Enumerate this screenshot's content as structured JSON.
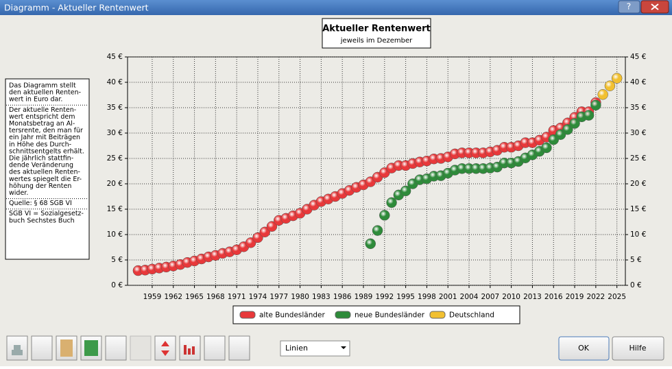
{
  "window": {
    "title": "Diagramm - Aktueller Rentenwert",
    "help_button": "?"
  },
  "notes": [
    [
      "Das Diagramm stellt",
      "den aktuellen Renten-",
      "wert in Euro dar."
    ],
    [
      "Der aktuelle Renten-",
      "wert entspricht dem",
      "Monatsbetrag an Al-",
      "tersrente, den man für",
      "ein Jahr mit Beiträgen",
      "in Höhe des Durch-",
      "schnittsentgelts erhält.",
      "Die jährlich stattfin-",
      "dende Veränderung",
      "des aktuellen Renten-",
      "wertes spiegelt die Er-",
      "höhung der Renten",
      "wider."
    ],
    [
      "Quelle: § 68 SGB VI"
    ],
    [
      "SGB VI = Sozialgesetz-",
      "buch Sechstes Buch"
    ]
  ],
  "controls": {
    "chart_style": "Linien",
    "ok": "OK",
    "help": "Hilfe"
  },
  "chart_data": {
    "type": "line",
    "title": "Aktueller Rentenwert",
    "subtitle": "jeweils im Dezember",
    "grid": true,
    "xlim": [
      1955.5,
      2026.2
    ],
    "xticks": [
      1959,
      1962,
      1965,
      1968,
      1971,
      1974,
      1977,
      1980,
      1983,
      1986,
      1989,
      1992,
      1995,
      1998,
      2001,
      2004,
      2007,
      2010,
      2013,
      2016,
      2019,
      2022,
      2025
    ],
    "ylim": [
      0,
      45
    ],
    "yticks": [
      {
        "value": 0,
        "label": "0 €"
      },
      {
        "value": 5,
        "label": "5 €"
      },
      {
        "value": 10,
        "label": "10 €"
      },
      {
        "value": 15,
        "label": "15 €"
      },
      {
        "value": 20,
        "label": "20 €"
      },
      {
        "value": 25,
        "label": "25 €"
      },
      {
        "value": 30,
        "label": "30 €"
      },
      {
        "value": 35,
        "label": "35 €"
      },
      {
        "value": 40,
        "label": "40 €"
      },
      {
        "value": 45,
        "label": "45 €"
      }
    ],
    "series": [
      {
        "name": "alte Bundesländer",
        "color": "#e8383a",
        "x": [
          1957,
          1958,
          1959,
          1960,
          1961,
          1962,
          1963,
          1964,
          1965,
          1966,
          1967,
          1968,
          1969,
          1970,
          1971,
          1972,
          1973,
          1974,
          1975,
          1976,
          1977,
          1978,
          1979,
          1980,
          1981,
          1982,
          1983,
          1984,
          1985,
          1986,
          1987,
          1988,
          1989,
          1990,
          1991,
          1992,
          1993,
          1994,
          1995,
          1996,
          1997,
          1998,
          1999,
          2000,
          2001,
          2002,
          2003,
          2004,
          2005,
          2006,
          2007,
          2008,
          2009,
          2010,
          2011,
          2012,
          2013,
          2014,
          2015,
          2016,
          2017,
          2018,
          2019,
          2020,
          2021,
          2022
        ],
        "values": [
          2.9,
          3.0,
          3.2,
          3.4,
          3.6,
          3.8,
          4.1,
          4.5,
          4.8,
          5.2,
          5.6,
          5.9,
          6.3,
          6.6,
          7.0,
          7.6,
          8.4,
          9.4,
          10.5,
          11.6,
          12.8,
          13.2,
          13.7,
          14.2,
          15.0,
          15.8,
          16.5,
          17.0,
          17.5,
          18.1,
          18.7,
          19.3,
          19.8,
          20.4,
          21.3,
          22.2,
          23.1,
          23.6,
          23.6,
          24.0,
          24.3,
          24.5,
          24.9,
          25.0,
          25.3,
          25.9,
          26.1,
          26.1,
          26.1,
          26.1,
          26.3,
          26.6,
          27.2,
          27.2,
          27.5,
          28.1,
          28.1,
          28.6,
          29.2,
          30.5,
          31.0,
          32.0,
          33.1,
          34.2,
          34.2,
          36.0
        ]
      },
      {
        "name": "neue Bundesländer",
        "color": "#2e8b3a",
        "x": [
          1990,
          1991,
          1992,
          1993,
          1994,
          1995,
          1996,
          1997,
          1998,
          1999,
          2000,
          2001,
          2002,
          2003,
          2004,
          2005,
          2006,
          2007,
          2008,
          2009,
          2010,
          2011,
          2012,
          2013,
          2014,
          2015,
          2016,
          2017,
          2018,
          2019,
          2020,
          2021,
          2022
        ],
        "values": [
          8.2,
          10.8,
          13.8,
          16.3,
          17.8,
          18.6,
          20.0,
          20.8,
          21.0,
          21.5,
          21.6,
          22.1,
          22.7,
          23.0,
          23.0,
          23.0,
          23.0,
          23.1,
          23.3,
          24.1,
          24.1,
          24.4,
          25.1,
          25.7,
          26.4,
          27.1,
          28.7,
          29.7,
          30.7,
          31.9,
          33.2,
          33.5,
          35.5
        ]
      },
      {
        "name": "Deutschland",
        "color": "#f2c030",
        "x": [
          2023,
          2024,
          2025
        ],
        "values": [
          37.6,
          39.3,
          40.8
        ]
      }
    ]
  }
}
